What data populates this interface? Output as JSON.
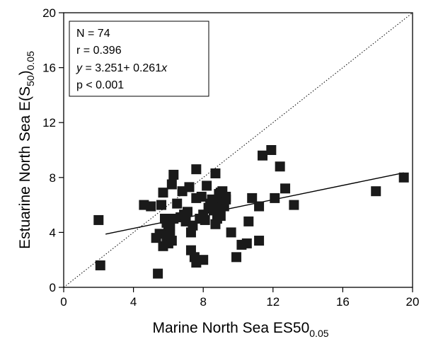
{
  "chart_data": {
    "type": "scatter",
    "title": "",
    "xlabel": {
      "main": "Marine North Sea ES50",
      "sub": "0.05"
    },
    "ylabel": {
      "pre": "Estuarine North Sea E(S",
      "sub1": "50",
      "mid": ")",
      "sub2": "0.05"
    },
    "xlim": [
      0,
      20
    ],
    "ylim": [
      0,
      20
    ],
    "xticks": [
      0,
      4,
      8,
      12,
      16,
      20
    ],
    "yticks": [
      0,
      4,
      8,
      12,
      16,
      20
    ],
    "grid": false,
    "marker": "filled-square",
    "marker_color": "#1a1a1a",
    "reference_line": {
      "style": "dotted",
      "from": [
        0,
        0
      ],
      "to": [
        20,
        20
      ]
    },
    "regression_line": {
      "intercept": 3.251,
      "slope": 0.261,
      "x_range": [
        2.4,
        19.5
      ]
    },
    "stats_box": {
      "position": "top-left",
      "lines": [
        "N = 74",
        "r = 0.396",
        "p < 0.001"
      ],
      "equation": {
        "y": "y",
        "rhs": " = 3.251+ 0.261",
        "x": "x"
      }
    },
    "points": [
      [
        2.0,
        4.9
      ],
      [
        2.1,
        1.6
      ],
      [
        4.6,
        6.0
      ],
      [
        5.0,
        5.9
      ],
      [
        5.3,
        3.6
      ],
      [
        5.4,
        1.0
      ],
      [
        5.5,
        3.9
      ],
      [
        5.6,
        6.0
      ],
      [
        5.7,
        3.0
      ],
      [
        5.7,
        6.9
      ],
      [
        5.8,
        5.0
      ],
      [
        5.9,
        3.5
      ],
      [
        5.9,
        4.7
      ],
      [
        6.0,
        4.1
      ],
      [
        6.0,
        3.2
      ],
      [
        6.1,
        3.8
      ],
      [
        6.1,
        4.5
      ],
      [
        6.2,
        7.5
      ],
      [
        6.2,
        3.4
      ],
      [
        6.3,
        5.0
      ],
      [
        6.3,
        8.2
      ],
      [
        6.5,
        6.1
      ],
      [
        6.7,
        5.1
      ],
      [
        6.8,
        7.0
      ],
      [
        6.9,
        5.3
      ],
      [
        7.0,
        4.8
      ],
      [
        7.1,
        5.5
      ],
      [
        7.2,
        7.3
      ],
      [
        7.3,
        2.7
      ],
      [
        7.3,
        4.0
      ],
      [
        7.4,
        4.5
      ],
      [
        7.5,
        2.2
      ],
      [
        7.6,
        1.8
      ],
      [
        7.6,
        6.5
      ],
      [
        7.6,
        8.6
      ],
      [
        7.8,
        5.0
      ],
      [
        7.9,
        6.6
      ],
      [
        8.0,
        2.0
      ],
      [
        8.0,
        5.3
      ],
      [
        8.1,
        4.9
      ],
      [
        8.2,
        7.4
      ],
      [
        8.3,
        5.8
      ],
      [
        8.4,
        6.1
      ],
      [
        8.5,
        6.4
      ],
      [
        8.6,
        5.6
      ],
      [
        8.7,
        8.3
      ],
      [
        8.7,
        4.6
      ],
      [
        8.8,
        5.0
      ],
      [
        8.8,
        5.7
      ],
      [
        8.9,
        6.8
      ],
      [
        8.9,
        6.2
      ],
      [
        9.0,
        5.2
      ],
      [
        9.1,
        7.0
      ],
      [
        9.1,
        6.5
      ],
      [
        9.2,
        5.9
      ],
      [
        9.3,
        6.4
      ],
      [
        9.3,
        6.6
      ],
      [
        9.6,
        4.0
      ],
      [
        9.9,
        2.2
      ],
      [
        10.2,
        3.1
      ],
      [
        10.5,
        3.2
      ],
      [
        10.6,
        4.8
      ],
      [
        10.8,
        6.5
      ],
      [
        11.2,
        5.9
      ],
      [
        11.2,
        3.4
      ],
      [
        11.4,
        9.6
      ],
      [
        11.9,
        10.0
      ],
      [
        12.1,
        6.5
      ],
      [
        12.4,
        8.8
      ],
      [
        12.7,
        7.2
      ],
      [
        13.2,
        6.0
      ],
      [
        17.9,
        7.0
      ],
      [
        19.5,
        8.0
      ],
      [
        9.0,
        6.9
      ]
    ]
  }
}
